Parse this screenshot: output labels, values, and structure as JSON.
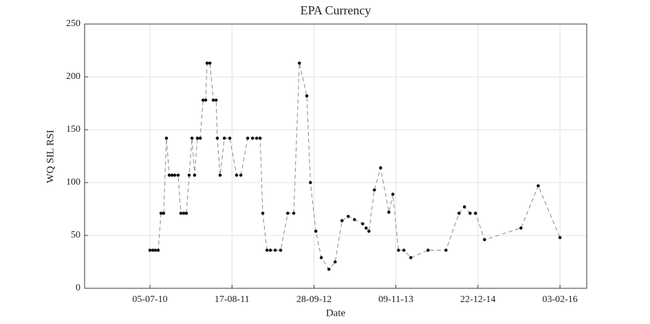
{
  "chart_data": {
    "type": "line",
    "title": "EPA Currency",
    "x_label": "Date",
    "y_label": "WQ SIL RSI",
    "x": [
      "2010-07-05",
      "2010-07-19",
      "2010-08-01",
      "2010-08-15",
      "2010-08-29",
      "2010-09-11",
      "2010-09-25",
      "2010-10-09",
      "2010-10-23",
      "2010-11-05",
      "2010-11-22",
      "2010-12-06",
      "2010-12-20",
      "2011-01-02",
      "2011-01-16",
      "2011-01-30",
      "2011-02-12",
      "2011-02-26",
      "2011-03-12",
      "2011-03-26",
      "2011-04-08",
      "2011-04-15",
      "2011-04-29",
      "2011-05-16",
      "2011-05-30",
      "2011-06-05",
      "2011-06-19",
      "2011-07-10",
      "2011-08-06",
      "2011-09-09",
      "2011-09-30",
      "2011-11-03",
      "2011-11-27",
      "2011-12-18",
      "2012-01-04",
      "2012-01-17",
      "2012-02-07",
      "2012-02-24",
      "2012-03-19",
      "2012-04-15",
      "2012-05-20",
      "2012-06-19",
      "2012-07-17",
      "2012-08-23",
      "2012-09-10",
      "2012-10-07",
      "2012-11-03",
      "2012-12-11",
      "2013-01-11",
      "2013-02-14",
      "2013-03-17",
      "2013-04-17",
      "2013-05-28",
      "2013-06-14",
      "2013-06-28",
      "2013-07-25",
      "2013-08-25",
      "2013-10-05",
      "2013-10-25",
      "2013-11-22",
      "2013-12-19",
      "2014-01-22",
      "2014-04-18",
      "2014-07-16",
      "2014-09-19",
      "2014-10-16",
      "2014-11-13",
      "2014-12-10",
      "2015-01-24",
      "2015-07-24",
      "2015-10-18",
      "2016-02-03"
    ],
    "series": [
      {
        "name": "WQ SIL RSI",
        "color": "#888888",
        "marker_color": "#111111",
        "values": [
          36,
          36,
          36,
          36,
          71,
          71,
          142,
          107,
          107,
          107,
          107,
          71,
          71,
          71,
          107,
          142,
          107,
          142,
          142,
          178,
          178,
          213,
          213,
          178,
          178,
          142,
          107,
          142,
          142,
          107,
          107,
          142,
          142,
          142,
          142,
          71,
          36,
          36,
          36,
          36,
          71,
          71,
          213,
          182,
          100,
          54,
          29,
          18,
          25,
          64,
          68,
          65,
          61,
          57,
          54,
          93,
          114,
          72,
          89,
          36,
          36,
          29,
          36,
          36,
          71,
          77,
          71,
          71,
          46,
          57,
          97,
          48
        ]
      }
    ],
    "xlim": [
      "2009-08-14",
      "2016-06-15"
    ],
    "xticks": [
      {
        "value": "2010-07-05",
        "label": "05-07-10"
      },
      {
        "value": "2011-08-17",
        "label": "17-08-11"
      },
      {
        "value": "2012-09-28",
        "label": "28-09-12"
      },
      {
        "value": "2013-11-09",
        "label": "09-11-13"
      },
      {
        "value": "2014-12-22",
        "label": "22-12-14"
      },
      {
        "value": "2016-02-03",
        "label": "03-02-16"
      }
    ],
    "ylim": [
      0,
      250
    ],
    "yticks": [
      0,
      50,
      100,
      150,
      200,
      250
    ],
    "grid": true
  }
}
